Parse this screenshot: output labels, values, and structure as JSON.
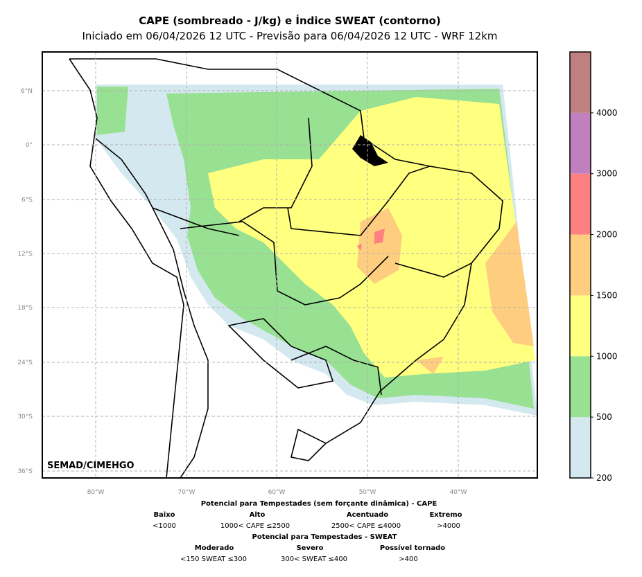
{
  "title": "CAPE (sombreado - J/kg) e Índice SWEAT (contorno)",
  "subtitle": "Iniciado em 06/04/2026 12 UTC - Previsão para 06/04/2026 12 UTC - WRF 12km",
  "map": {
    "credit": "SEMAD/CIMEHGO",
    "lon_ticks": [
      "80°W",
      "70°W",
      "60°W",
      "50°W",
      "40°W"
    ],
    "lat_ticks": [
      "6°N",
      "0°",
      "6°S",
      "12°S",
      "18°S",
      "24°S",
      "30°S",
      "36°S"
    ]
  },
  "colorbar": {
    "levels": [
      {
        "from": "200",
        "to": "500",
        "color": "#d4e9ef"
      },
      {
        "from": "500",
        "to": "1000",
        "color": "#98e092"
      },
      {
        "from": "1000",
        "to": "1500",
        "color": "#ffff80"
      },
      {
        "from": "1500",
        "to": "2000",
        "color": "#ffcd80"
      },
      {
        "from": "2000",
        "to": "3000",
        "color": "#ff8080"
      },
      {
        "from": "3000",
        "to": "4000",
        "color": "#c080c0"
      },
      {
        "from": "4000",
        "to": "",
        "color": "#c08080"
      }
    ],
    "tick_labels": [
      "200",
      "500",
      "1000",
      "1500",
      "2000",
      "3000",
      "4000"
    ]
  },
  "legend": {
    "cape_title": "Potencial para Tempestades (sem forçante dinâmica) - CAPE",
    "cape": [
      {
        "label": "Baixo",
        "range": "<1000"
      },
      {
        "label": "Alto",
        "range": "1000< CAPE ≤2500"
      },
      {
        "label": "Acentuado",
        "range": "2500< CAPE ≤4000"
      },
      {
        "label": "Extremo",
        "range": ">4000"
      }
    ],
    "sweat_title": "Potencial para Tempestades - SWEAT",
    "sweat": [
      {
        "label": "Moderado",
        "range": "<150 SWEAT ≤300"
      },
      {
        "label": "Severo",
        "range": "300< SWEAT ≤400"
      },
      {
        "label": "Possível tornado",
        "range": ">400"
      }
    ]
  }
}
